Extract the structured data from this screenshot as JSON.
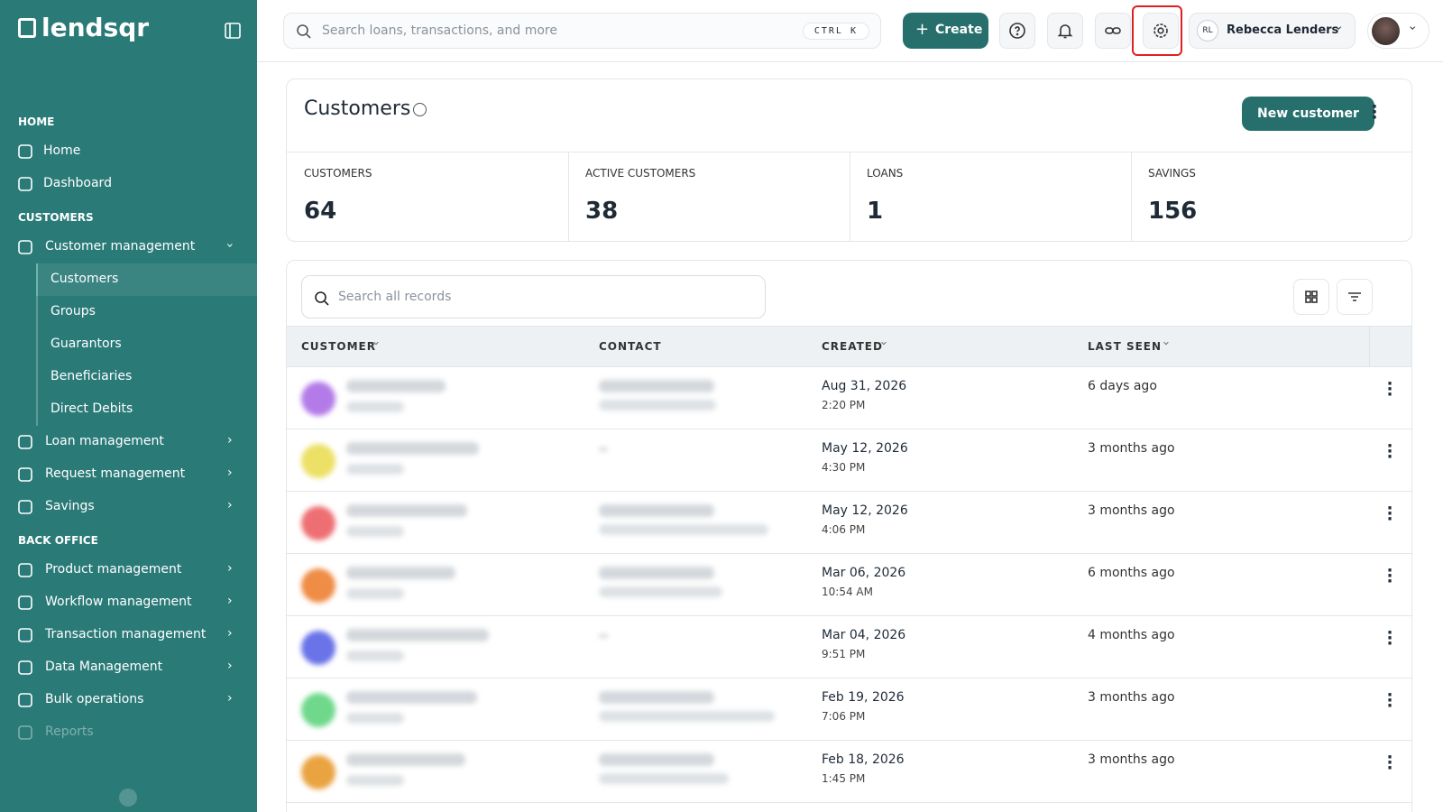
{
  "sidebar": {
    "logo": "lendsqr",
    "sections": [
      {
        "title": "HOME",
        "items": [
          {
            "label": "Home"
          },
          {
            "label": "Dashboard"
          }
        ]
      },
      {
        "title": "CUSTOMERS",
        "items": [
          {
            "label": "Customer management",
            "children": [
              "Customers",
              "Groups",
              "Guarantors",
              "Beneficiaries",
              "Direct Debits"
            ]
          },
          {
            "label": "Loan management"
          },
          {
            "label": "Request management"
          },
          {
            "label": "Savings"
          }
        ]
      },
      {
        "title": "BACK OFFICE",
        "items": [
          {
            "label": "Product management"
          },
          {
            "label": "Workflow management"
          },
          {
            "label": "Transaction management"
          },
          {
            "label": "Data Management"
          },
          {
            "label": "Bulk operations"
          },
          {
            "label": "Reports"
          }
        ]
      }
    ]
  },
  "topbar": {
    "search_placeholder": "Search loans, transactions, and more",
    "shortcut": "CTRL K",
    "create": "Create",
    "user_initials": "RL",
    "user_name": "Rebecca Lenders"
  },
  "page": {
    "title": "Customers",
    "new_customer": "New customer",
    "stats": [
      {
        "label": "CUSTOMERS",
        "value": 64
      },
      {
        "label": "ACTIVE CUSTOMERS",
        "value": 38
      },
      {
        "label": "LOANS",
        "value": 1
      },
      {
        "label": "SAVINGS",
        "value": 156
      }
    ]
  },
  "table": {
    "search_placeholder": "Search all records",
    "columns": [
      "CUSTOMER",
      "CONTACT",
      "CREATED",
      "LAST SEEN"
    ],
    "rows": [
      {
        "created_date": "Aug 31, 2026",
        "created_time": "2:20 PM",
        "last_seen": "6 days ago"
      },
      {
        "created_date": "May 12, 2026",
        "created_time": "4:30 PM",
        "last_seen": "3 months ago"
      },
      {
        "created_date": "May 12, 2026",
        "created_time": "4:06 PM",
        "last_seen": "3 months ago"
      },
      {
        "created_date": "Mar 06, 2026",
        "created_time": "10:54 AM",
        "last_seen": "6 months ago"
      },
      {
        "created_date": "Mar 04, 2026",
        "created_time": "9:51 PM",
        "last_seen": "4 months ago"
      },
      {
        "created_date": "Feb 19, 2026",
        "created_time": "7:06 PM",
        "last_seen": "3 months ago"
      },
      {
        "created_date": "Feb 18, 2026",
        "created_time": "1:45 PM",
        "last_seen": "3 months ago"
      }
    ]
  }
}
